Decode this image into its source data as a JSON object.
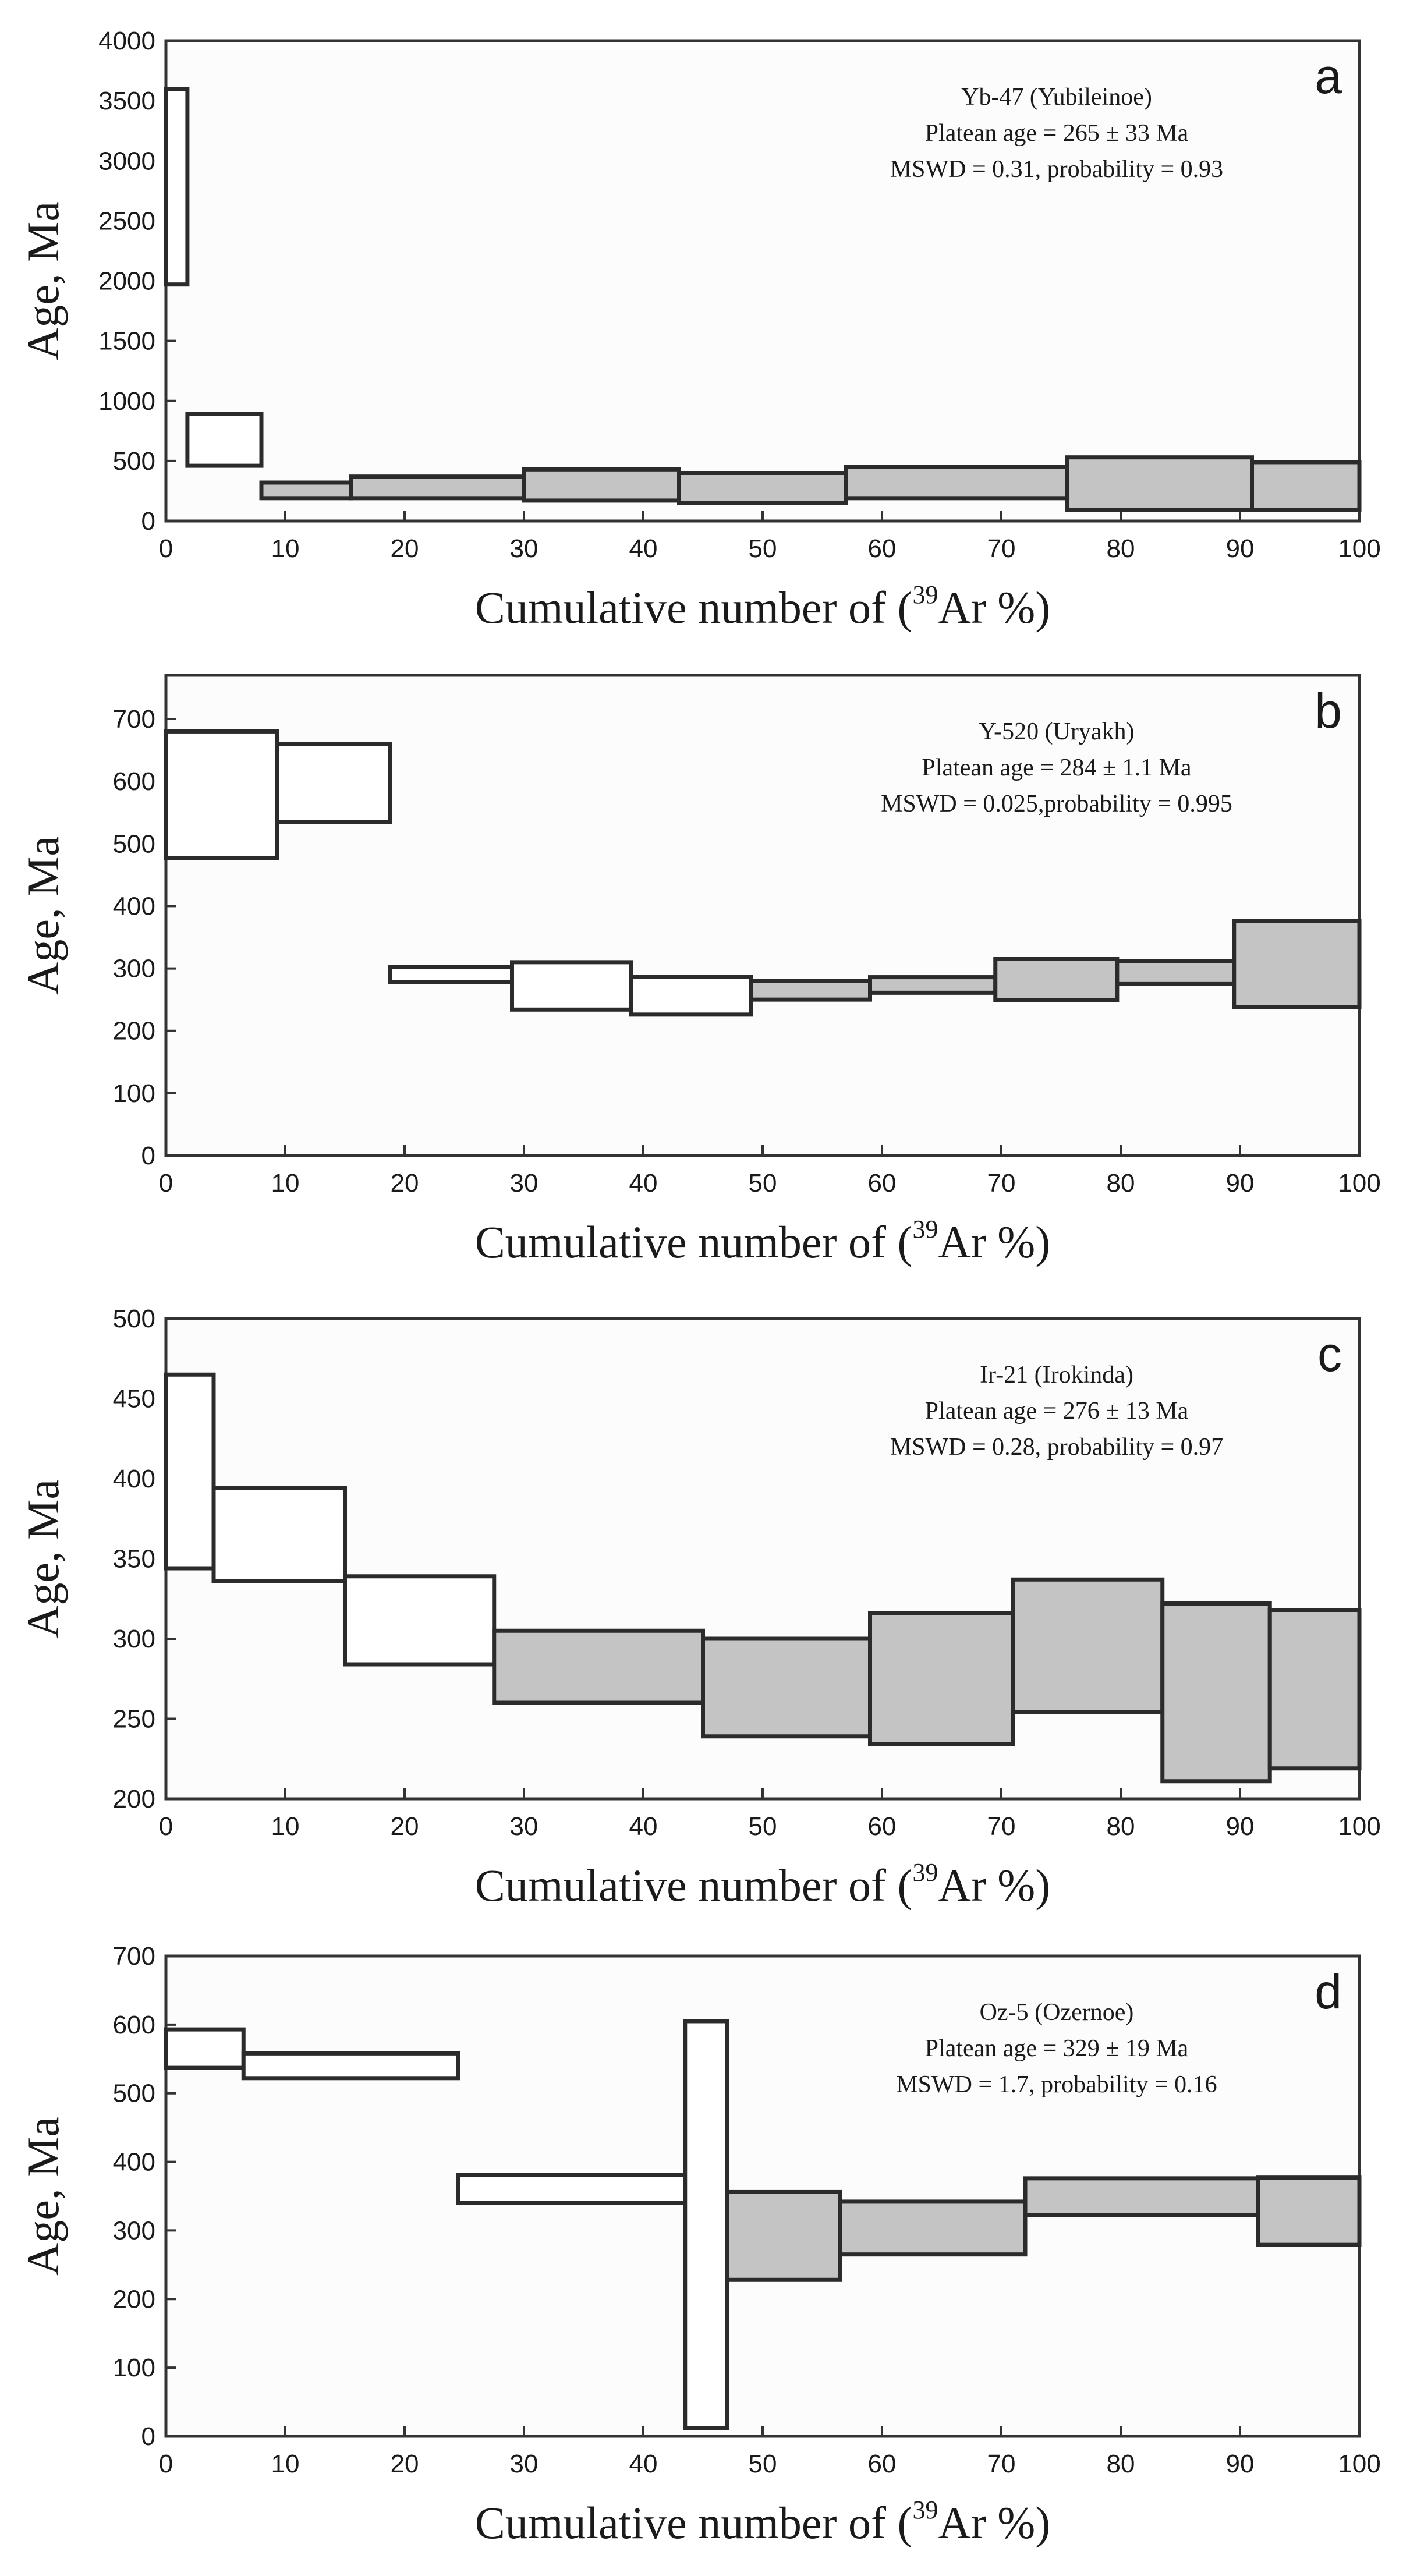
{
  "colors": {
    "plateau_fill": "#c4c4c4",
    "open_fill": "#ffffff",
    "frame": "#333333",
    "step_stroke": "#2b2b2b",
    "background": "#fcfcfc"
  },
  "chart_data": [
    {
      "type": "bar",
      "panel": "a",
      "sample": "Yb-47 (Yubileinoe)",
      "plateau": "Platean age = 265 ± 33 Ma",
      "stats": "MSWD = 0.31, probability = 0.93",
      "xlabel_prefix": "Cumulative number of (",
      "xlabel_sup": "39",
      "xlabel_suffix": "Ar %)",
      "ylabel": "Age, Ma",
      "xlim": [
        0,
        100
      ],
      "ylim": [
        0,
        4000
      ],
      "xticks": [
        "0",
        "10",
        "20",
        "30",
        "40",
        "50",
        "60",
        "70",
        "80",
        "90",
        "100"
      ],
      "yticks": [
        "0",
        "500",
        "1000",
        "1500",
        "2000",
        "2500",
        "3000",
        "3500",
        "4000"
      ],
      "steps": [
        {
          "x0": 0,
          "x1": 1.8,
          "low": 1970,
          "high": 3600,
          "plateau": false
        },
        {
          "x0": 1.8,
          "x1": 8,
          "low": 460,
          "high": 890,
          "plateau": false
        },
        {
          "x0": 8,
          "x1": 15.5,
          "low": 190,
          "high": 320,
          "plateau": true
        },
        {
          "x0": 15.5,
          "x1": 30,
          "low": 190,
          "high": 370,
          "plateau": true
        },
        {
          "x0": 30,
          "x1": 43,
          "low": 170,
          "high": 430,
          "plateau": true
        },
        {
          "x0": 43,
          "x1": 57,
          "low": 150,
          "high": 400,
          "plateau": true
        },
        {
          "x0": 57,
          "x1": 75.5,
          "low": 190,
          "high": 450,
          "plateau": true
        },
        {
          "x0": 75.5,
          "x1": 91,
          "low": 90,
          "high": 530,
          "plateau": true
        },
        {
          "x0": 91,
          "x1": 100,
          "low": 90,
          "high": 490,
          "plateau": true
        }
      ]
    },
    {
      "type": "bar",
      "panel": "b",
      "sample": "Y-520 (Uryakh)",
      "plateau": "Platean age = 284 ± 1.1 Ma",
      "stats": "MSWD = 0.025,probability = 0.995",
      "xlabel_prefix": "Cumulative number of (",
      "xlabel_sup": "39",
      "xlabel_suffix": "Ar %)",
      "ylabel": "Age, Ma",
      "xlim": [
        0,
        100
      ],
      "ylim": [
        0,
        770
      ],
      "xticks": [
        "0",
        "10",
        "20",
        "30",
        "40",
        "50",
        "60",
        "70",
        "80",
        "90",
        "100"
      ],
      "yticks": [
        "0",
        "100",
        "200",
        "300",
        "400",
        "500",
        "600",
        "700"
      ],
      "steps": [
        {
          "x0": 0,
          "x1": 9.3,
          "low": 477,
          "high": 680,
          "plateau": false
        },
        {
          "x0": 9.3,
          "x1": 18.8,
          "low": 535,
          "high": 660,
          "plateau": false
        },
        {
          "x0": 18.8,
          "x1": 29,
          "low": 278,
          "high": 302,
          "plateau": false
        },
        {
          "x0": 29,
          "x1": 39,
          "low": 234,
          "high": 310,
          "plateau": false
        },
        {
          "x0": 39,
          "x1": 49,
          "low": 226,
          "high": 287,
          "plateau": false
        },
        {
          "x0": 49,
          "x1": 59,
          "low": 250,
          "high": 280,
          "plateau": true
        },
        {
          "x0": 59,
          "x1": 69.5,
          "low": 261,
          "high": 286,
          "plateau": true
        },
        {
          "x0": 69.5,
          "x1": 79.7,
          "low": 249,
          "high": 315,
          "plateau": true
        },
        {
          "x0": 79.7,
          "x1": 89.5,
          "low": 275,
          "high": 312,
          "plateau": true
        },
        {
          "x0": 89.5,
          "x1": 100,
          "low": 238,
          "high": 376,
          "plateau": true
        }
      ]
    },
    {
      "type": "bar",
      "panel": "c",
      "sample": "Ir-21 (Irokinda)",
      "plateau": "Platean age = 276 ± 13 Ma",
      "stats": "MSWD = 0.28, probability = 0.97",
      "xlabel_prefix": "Cumulative number of (",
      "xlabel_sup": "39",
      "xlabel_suffix": "Ar %)",
      "ylabel": "Age, Ma",
      "xlim": [
        0,
        100
      ],
      "ylim": [
        200,
        500
      ],
      "xticks": [
        "0",
        "10",
        "20",
        "30",
        "40",
        "50",
        "60",
        "70",
        "80",
        "90",
        "100"
      ],
      "yticks": [
        "200",
        "250",
        "300",
        "350",
        "400",
        "450",
        "500"
      ],
      "steps": [
        {
          "x0": 0,
          "x1": 4,
          "low": 344,
          "high": 465,
          "plateau": false
        },
        {
          "x0": 4,
          "x1": 15,
          "low": 336,
          "high": 394,
          "plateau": false
        },
        {
          "x0": 15,
          "x1": 27.5,
          "low": 284,
          "high": 339,
          "plateau": false
        },
        {
          "x0": 27.5,
          "x1": 45,
          "low": 260,
          "high": 305,
          "plateau": true
        },
        {
          "x0": 45,
          "x1": 59,
          "low": 239,
          "high": 300,
          "plateau": true
        },
        {
          "x0": 59,
          "x1": 71,
          "low": 234,
          "high": 316,
          "plateau": true
        },
        {
          "x0": 71,
          "x1": 83.5,
          "low": 254,
          "high": 337,
          "plateau": true
        },
        {
          "x0": 83.5,
          "x1": 92.5,
          "low": 211,
          "high": 322,
          "plateau": true
        },
        {
          "x0": 92.5,
          "x1": 100,
          "low": 219,
          "high": 318,
          "plateau": true
        }
      ]
    },
    {
      "type": "bar",
      "panel": "d",
      "sample": "Oz-5 (Ozernoe)",
      "plateau": "Platean age = 329 ± 19 Ma",
      "stats": "MSWD = 1.7, probability = 0.16",
      "xlabel_prefix": "Cumulative number of (",
      "xlabel_sup": "39",
      "xlabel_suffix": "Ar %)",
      "ylabel": "Age, Ma",
      "xlim": [
        0,
        100
      ],
      "ylim": [
        0,
        700
      ],
      "xticks": [
        "0",
        "10",
        "20",
        "30",
        "40",
        "50",
        "60",
        "70",
        "80",
        "90",
        "100"
      ],
      "yticks": [
        "0",
        "100",
        "200",
        "300",
        "400",
        "500",
        "600",
        "700"
      ],
      "steps": [
        {
          "x0": 0,
          "x1": 6.5,
          "low": 537,
          "high": 593,
          "plateau": false
        },
        {
          "x0": 6.5,
          "x1": 24.5,
          "low": 522,
          "high": 558,
          "plateau": false
        },
        {
          "x0": 24.5,
          "x1": 43.5,
          "low": 340,
          "high": 381,
          "plateau": false
        },
        {
          "x0": 43.5,
          "x1": 47,
          "low": 12,
          "high": 605,
          "plateau": false
        },
        {
          "x0": 47,
          "x1": 56.5,
          "low": 228,
          "high": 356,
          "plateau": true
        },
        {
          "x0": 56.5,
          "x1": 72,
          "low": 265,
          "high": 342,
          "plateau": true
        },
        {
          "x0": 72,
          "x1": 91.5,
          "low": 322,
          "high": 376,
          "plateau": true
        },
        {
          "x0": 91.5,
          "x1": 100,
          "low": 279,
          "high": 377,
          "plateau": true
        }
      ]
    }
  ]
}
